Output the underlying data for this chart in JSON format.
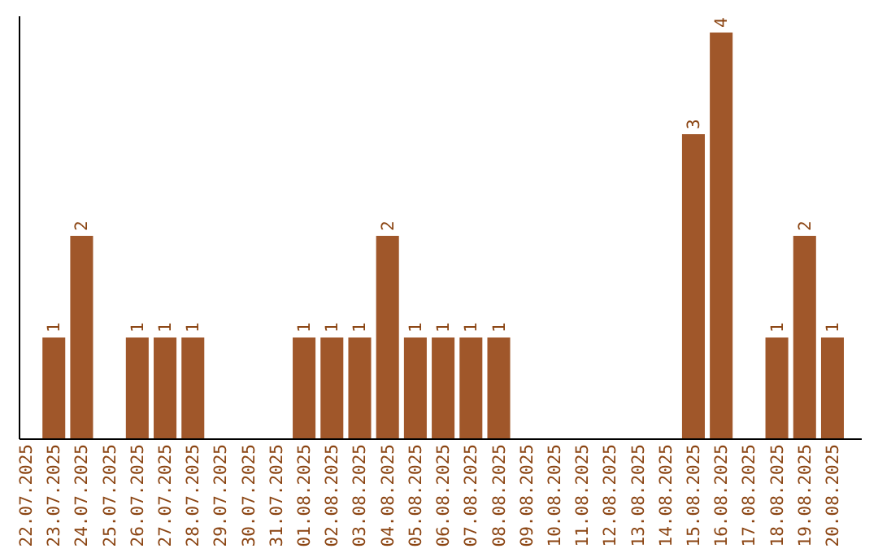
{
  "chart_data": {
    "type": "bar",
    "categories": [
      "22.07.2025",
      "23.07.2025",
      "24.07.2025",
      "25.07.2025",
      "26.07.2025",
      "27.07.2025",
      "28.07.2025",
      "29.07.2025",
      "30.07.2025",
      "31.07.2025",
      "01.08.2025",
      "02.08.2025",
      "03.08.2025",
      "04.08.2025",
      "05.08.2025",
      "06.08.2025",
      "07.08.2025",
      "08.08.2025",
      "09.08.2025",
      "10.08.2025",
      "11.08.2025",
      "12.08.2025",
      "13.08.2025",
      "14.08.2025",
      "15.08.2025",
      "16.08.2025",
      "17.08.2025",
      "18.08.2025",
      "19.08.2025",
      "20.08.2025"
    ],
    "values": [
      0,
      1,
      2,
      0,
      1,
      1,
      1,
      0,
      0,
      0,
      1,
      1,
      1,
      2,
      1,
      1,
      1,
      1,
      0,
      0,
      0,
      0,
      0,
      0,
      3,
      4,
      0,
      1,
      2,
      1
    ],
    "value_labels": [
      null,
      "1",
      "2",
      null,
      "1",
      "1",
      "1",
      null,
      null,
      null,
      "1",
      "1",
      "1",
      "2",
      "1",
      "1",
      "1",
      "1",
      null,
      null,
      null,
      null,
      null,
      null,
      "3",
      "4",
      null,
      "1",
      "2",
      "1"
    ],
    "color": "#a0572a",
    "ylim": [
      0,
      4
    ],
    "tick_labels": "x"
  }
}
